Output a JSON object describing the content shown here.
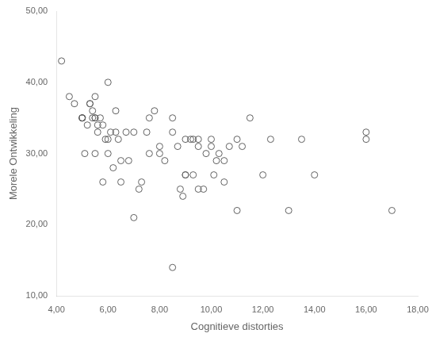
{
  "chart_data": {
    "type": "scatter",
    "x": [
      4.2,
      4.7,
      5.0,
      5.0,
      5.0,
      5.0,
      5.1,
      5.2,
      5.3,
      5.3,
      5.4,
      5.4,
      5.5,
      5.5,
      5.5,
      5.6,
      5.6,
      5.7,
      5.8,
      5.9,
      6.0,
      6.0,
      6.1,
      6.2,
      6.3,
      6.3,
      6.4,
      6.5,
      6.5,
      6.7,
      6.8,
      7.0,
      7.0,
      7.2,
      7.3,
      7.5,
      7.6,
      7.6,
      7.8,
      8.0,
      8.0,
      8.2,
      8.5,
      8.5,
      8.7,
      8.8,
      8.9,
      9.0,
      9.0,
      9.0,
      9.2,
      9.3,
      9.5,
      9.5,
      9.5,
      9.7,
      9.8,
      10.0,
      10.0,
      10.1,
      10.2,
      10.3,
      10.5,
      10.5,
      10.7,
      11.0,
      11.0,
      11.2,
      11.5,
      12.0,
      12.3,
      13.0,
      13.5,
      14.0,
      16.0,
      16.0,
      17.0,
      8.5,
      4.5,
      5.5,
      5.8,
      6.0,
      9.3
    ],
    "values": [
      43,
      37,
      35,
      35,
      35,
      35,
      30,
      34,
      37,
      37,
      36,
      35,
      35,
      35,
      30,
      34,
      33,
      35,
      34,
      32,
      40,
      30,
      33,
      28,
      33,
      36,
      32,
      26,
      29,
      33,
      29,
      21,
      33,
      25,
      26,
      33,
      35,
      30,
      36,
      31,
      30,
      29,
      33,
      35,
      31,
      25,
      24,
      32,
      27,
      27,
      32,
      32,
      32,
      25,
      31,
      25,
      30,
      32,
      31,
      27,
      29,
      30,
      26,
      29,
      31,
      22,
      32,
      31,
      35,
      27,
      32,
      22,
      32,
      27,
      33,
      32,
      22,
      14,
      38,
      38,
      26,
      32,
      27
    ],
    "xlabel": "Cognitieve distorties",
    "ylabel": "Morele Ontwikkeling",
    "xlim": [
      4.0,
      18.0
    ],
    "ylim": [
      10.0,
      50.0
    ],
    "xticks": [
      {
        "value": 4,
        "label": "4,00"
      },
      {
        "value": 6,
        "label": "6,00"
      },
      {
        "value": 8,
        "label": "8,00"
      },
      {
        "value": 10,
        "label": "10,00"
      },
      {
        "value": 12,
        "label": "12,00"
      },
      {
        "value": 14,
        "label": "14,00"
      },
      {
        "value": 16,
        "label": "16,00"
      },
      {
        "value": 18,
        "label": "18,00"
      }
    ],
    "yticks": [
      {
        "value": 10,
        "label": "10,00"
      },
      {
        "value": 20,
        "label": "20,00"
      },
      {
        "value": 30,
        "label": "30,00"
      },
      {
        "value": 40,
        "label": "40,00"
      },
      {
        "value": 50,
        "label": "50,00"
      }
    ],
    "color": "#606060",
    "marker": "circle",
    "grid": false
  }
}
